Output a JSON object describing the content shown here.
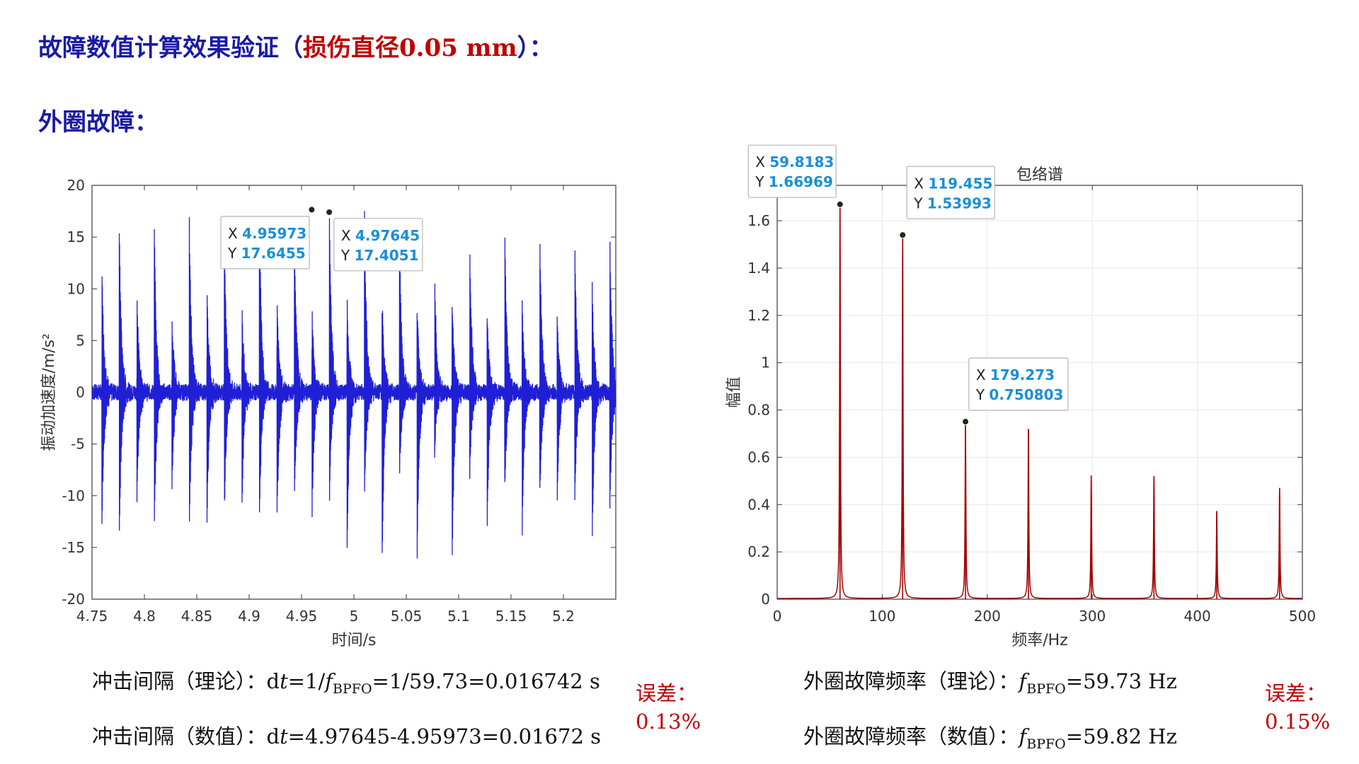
{
  "header": {
    "title_prefix": "故障数值计算效果验证（",
    "title_highlight": "损伤直径0.05 mm",
    "title_suffix": "）：",
    "subtitle": "外圈故障："
  },
  "chart_data": [
    {
      "type": "line",
      "title": "",
      "xlabel": "时间/s",
      "ylabel": "振动加速度/m/s²",
      "xlim": [
        4.75,
        5.25
      ],
      "ylim": [
        -20,
        20
      ],
      "xticks": [
        "4.75",
        "4.8",
        "4.85",
        "4.9",
        "4.95",
        "5",
        "5.05",
        "5.1",
        "5.15",
        "5.2"
      ],
      "yticks": [
        "20",
        "15",
        "10",
        "5",
        "0",
        "-5",
        "-10",
        "-15",
        "-20"
      ],
      "series": [
        {
          "color": "#1f1fd6",
          "impulse_period": 0.01672,
          "first_impulse": 4.7593,
          "peak": 17.6
        }
      ],
      "datatips": [
        {
          "x_label": "X",
          "y_label": "Y",
          "x": "4.95973",
          "y": "17.6455"
        },
        {
          "x_label": "X",
          "y_label": "Y",
          "x": "4.97645",
          "y": "17.4051"
        }
      ]
    },
    {
      "type": "line",
      "title": "包络谱",
      "xlabel": "频率/Hz",
      "ylabel": "幅值",
      "xlim": [
        0,
        500
      ],
      "ylim": [
        0,
        1.75
      ],
      "xticks": [
        "0",
        "100",
        "200",
        "300",
        "400",
        "500"
      ],
      "yticks": [
        "1.6",
        "1.4",
        "1.2",
        "1",
        "0.8",
        "0.6",
        "0.4",
        "0.2",
        "0"
      ],
      "series": [
        {
          "color": "#a40000",
          "peaks": [
            {
              "x": 59.8183,
              "y": 1.66969
            },
            {
              "x": 119.455,
              "y": 1.53993
            },
            {
              "x": 179.273,
              "y": 0.750803
            },
            {
              "x": 239.2,
              "y": 0.72
            },
            {
              "x": 299.0,
              "y": 0.52
            },
            {
              "x": 358.7,
              "y": 0.52
            },
            {
              "x": 418.5,
              "y": 0.37
            },
            {
              "x": 478.3,
              "y": 0.47
            }
          ]
        }
      ],
      "datatips": [
        {
          "x_label": "X",
          "y_label": "Y",
          "x": "59.8183",
          "y": "1.66969"
        },
        {
          "x_label": "X",
          "y_label": "Y",
          "x": "119.455",
          "y": "1.53993"
        },
        {
          "x_label": "X",
          "y_label": "Y",
          "x": "179.273",
          "y": "0.750803"
        }
      ]
    }
  ],
  "formulas": {
    "impulse_theory_label": "冲击间隔（理论）：",
    "impulse_theory_d": "d",
    "impulse_theory_t": "t",
    "impulse_theory_mid": "=1/",
    "impulse_theory_f": "f",
    "impulse_theory_sub": "BPFO",
    "impulse_theory_rest": "=1/59.73=0.016742 s",
    "impulse_numeric_label": "冲击间隔（数值）：",
    "impulse_numeric_d": "d",
    "impulse_numeric_t": "t",
    "impulse_numeric_rest": "=4.97645-4.95973=0.01672 s",
    "freq_theory_label": "外圈故障频率（理论）：",
    "freq_theory_f": "f",
    "freq_theory_sub": "BPFO",
    "freq_theory_rest": "=59.73 Hz",
    "freq_numeric_label": "外圈故障频率（数值）：",
    "freq_numeric_f": "f",
    "freq_numeric_sub": "BPFO",
    "freq_numeric_rest": "=59.82 Hz"
  },
  "errors": {
    "left_label": "误差：",
    "left_value": "0.13%",
    "right_label": "误差：",
    "right_value": "0.15%"
  }
}
